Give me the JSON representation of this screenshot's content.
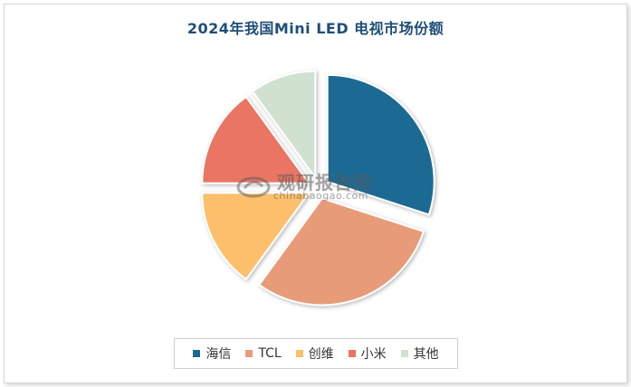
{
  "chart_data": {
    "type": "pie",
    "title": "2024年我国Mini LED 电视市场份额",
    "categories": [
      "海信",
      "TCL",
      "创维",
      "小米",
      "其他"
    ],
    "values": [
      30,
      30,
      15,
      15,
      10
    ],
    "colors": [
      "#1c6a93",
      "#e79b78",
      "#fcbf6c",
      "#e97462",
      "#d1e1cf"
    ],
    "legend_position": "bottom"
  },
  "watermark": {
    "text_cn": "观研报告网",
    "text_en": "chinabaogao.com"
  }
}
